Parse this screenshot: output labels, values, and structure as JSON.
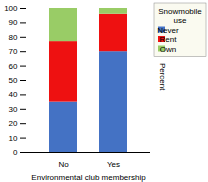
{
  "chart_data": {
    "type": "bar",
    "stacked": true,
    "categories": [
      "No",
      "Yes"
    ],
    "series": [
      {
        "name": "Never",
        "color": "#4472C4",
        "values": [
          35,
          70
        ]
      },
      {
        "name": "Rent",
        "color": "#EE1111",
        "values": [
          42,
          26
        ]
      },
      {
        "name": "Own",
        "color": "#99CC66",
        "values": [
          23,
          4
        ]
      }
    ],
    "legend_title": "Snowmobile\nuse",
    "xlabel": "Environmental club membership",
    "ylabel": "Percent",
    "ylim": [
      0,
      100
    ],
    "yticks": [
      0,
      10,
      20,
      30,
      40,
      50,
      60,
      70,
      80,
      90,
      100
    ],
    "grid": false,
    "legend": "upper right"
  }
}
